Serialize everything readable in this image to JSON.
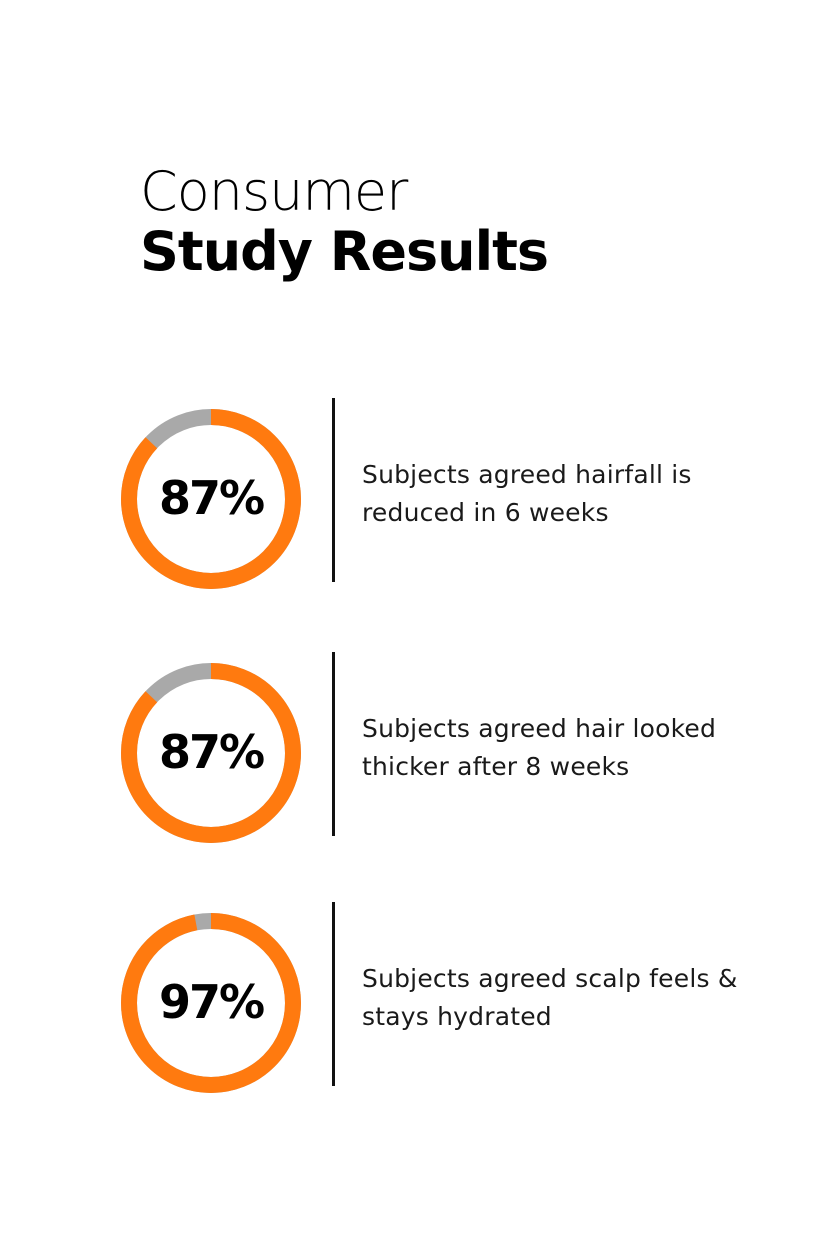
{
  "heading": {
    "line1": "Consumer",
    "line2": "Study Results"
  },
  "colors": {
    "accent": "#ff7a0f",
    "track": "#a9a9a9",
    "text": "#000000",
    "divider": "#111111"
  },
  "chart_data": {
    "type": "pie",
    "title": "Consumer Study Results",
    "series": [
      {
        "label": "87%",
        "value": 87,
        "description": "Subjects agreed hairfall is reduced in 6 weeks"
      },
      {
        "label": "87%",
        "value": 87,
        "description": "Subjects agreed hair looked thicker after 8 weeks"
      },
      {
        "label": "97%",
        "value": 97,
        "description": "Subjects agreed scalp feels & stays hydrated"
      }
    ]
  }
}
